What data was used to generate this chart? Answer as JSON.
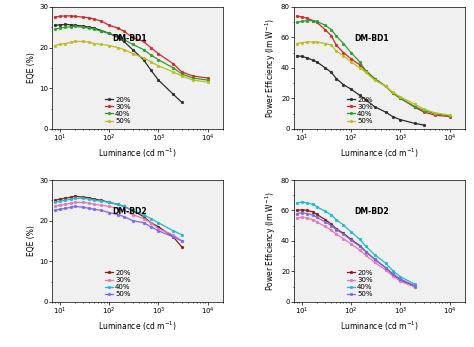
{
  "bd1_eqe": {
    "luminance": [
      8,
      10,
      13,
      17,
      20,
      30,
      40,
      50,
      70,
      100,
      150,
      200,
      300,
      500,
      700,
      1000,
      2000,
      3000,
      5000,
      10000,
      15000
    ],
    "20pct": [
      25.5,
      25.6,
      25.7,
      25.6,
      25.5,
      25.3,
      25.0,
      24.8,
      24.2,
      23.5,
      22.5,
      21.5,
      19.5,
      17.0,
      14.5,
      12.0,
      8.5,
      6.5,
      null,
      null,
      null
    ],
    "30pct": [
      27.5,
      27.7,
      27.8,
      27.8,
      27.7,
      27.5,
      27.3,
      27.0,
      26.5,
      25.5,
      24.8,
      24.0,
      22.5,
      21.5,
      20.0,
      18.5,
      16.0,
      14.0,
      13.0,
      12.5,
      null
    ],
    "40pct": [
      24.5,
      24.8,
      25.0,
      25.1,
      25.2,
      25.0,
      24.8,
      24.5,
      24.0,
      23.5,
      22.8,
      22.0,
      20.8,
      19.5,
      18.2,
      17.0,
      15.0,
      13.5,
      12.5,
      12.0,
      null
    ],
    "50pct": [
      20.5,
      20.8,
      21.0,
      21.3,
      21.5,
      21.5,
      21.3,
      21.0,
      20.8,
      20.5,
      20.0,
      19.5,
      18.5,
      17.5,
      16.5,
      15.5,
      14.0,
      13.0,
      12.0,
      11.5,
      null
    ]
  },
  "bd1_pe": {
    "luminance": [
      8,
      10,
      13,
      17,
      20,
      30,
      40,
      50,
      70,
      100,
      150,
      200,
      300,
      500,
      700,
      1000,
      2000,
      3000,
      5000,
      10000,
      15000
    ],
    "20pct": [
      48.0,
      47.5,
      46.5,
      45.0,
      44.0,
      40.0,
      37.0,
      33.0,
      29.0,
      26.0,
      22.0,
      19.0,
      14.5,
      11.0,
      8.0,
      6.0,
      3.5,
      2.5,
      null,
      null,
      null
    ],
    "30pct": [
      74.0,
      73.5,
      72.5,
      71.0,
      70.0,
      65.0,
      61.0,
      55.0,
      50.0,
      46.0,
      42.0,
      38.0,
      33.0,
      28.0,
      23.5,
      20.0,
      14.0,
      11.0,
      9.0,
      8.0,
      null
    ],
    "40pct": [
      70.0,
      70.5,
      71.0,
      71.0,
      70.5,
      68.0,
      65.0,
      61.0,
      56.0,
      50.0,
      44.0,
      38.0,
      33.0,
      28.0,
      23.5,
      20.0,
      14.5,
      12.0,
      10.0,
      8.5,
      null
    ],
    "50pct": [
      56.0,
      56.5,
      57.0,
      57.0,
      57.0,
      56.0,
      55.0,
      51.0,
      48.0,
      44.0,
      40.0,
      37.0,
      32.0,
      28.0,
      24.0,
      21.0,
      16.0,
      13.0,
      10.5,
      9.0,
      null
    ]
  },
  "bd2_eqe": {
    "luminance": [
      8,
      10,
      13,
      17,
      20,
      30,
      40,
      50,
      70,
      100,
      150,
      200,
      300,
      500,
      700,
      1000,
      2000,
      3000,
      5000,
      10000,
      15000
    ],
    "20pct": [
      25.0,
      25.3,
      25.5,
      25.8,
      26.0,
      25.8,
      25.6,
      25.3,
      25.0,
      24.5,
      24.0,
      23.5,
      22.5,
      21.0,
      19.5,
      18.5,
      16.0,
      13.5,
      null,
      null,
      null
    ],
    "30pct": [
      23.5,
      23.8,
      24.0,
      24.3,
      24.5,
      24.5,
      24.3,
      24.0,
      23.8,
      23.5,
      23.0,
      22.5,
      21.5,
      20.5,
      19.5,
      18.0,
      16.5,
      15.0,
      null,
      null,
      null
    ],
    "40pct": [
      24.5,
      24.8,
      25.0,
      25.3,
      25.5,
      25.5,
      25.3,
      25.0,
      24.8,
      24.5,
      24.0,
      23.5,
      22.5,
      21.5,
      20.5,
      19.5,
      17.5,
      16.5,
      null,
      null,
      null
    ],
    "50pct": [
      22.5,
      22.8,
      23.0,
      23.3,
      23.5,
      23.3,
      23.0,
      22.8,
      22.5,
      22.0,
      21.5,
      21.0,
      20.0,
      19.5,
      18.5,
      17.5,
      16.0,
      15.0,
      null,
      null,
      null
    ]
  },
  "bd2_pe": {
    "luminance": [
      8,
      10,
      13,
      17,
      20,
      30,
      40,
      50,
      70,
      100,
      150,
      200,
      300,
      500,
      700,
      1000,
      2000,
      3000,
      5000,
      10000,
      15000
    ],
    "20pct": [
      60.0,
      60.5,
      60.0,
      59.0,
      57.5,
      54.0,
      51.0,
      48.0,
      45.0,
      41.0,
      37.0,
      33.0,
      28.0,
      22.5,
      18.0,
      14.5,
      10.0,
      null,
      null,
      null,
      null
    ],
    "30pct": [
      55.0,
      55.5,
      55.0,
      54.0,
      52.5,
      49.5,
      47.0,
      44.5,
      41.5,
      38.0,
      34.0,
      30.5,
      26.0,
      21.0,
      17.0,
      13.5,
      9.5,
      null,
      null,
      null,
      null
    ],
    "40pct": [
      65.0,
      65.5,
      65.0,
      64.0,
      62.5,
      59.5,
      57.0,
      54.0,
      50.5,
      46.0,
      41.0,
      36.5,
      31.0,
      25.5,
      20.5,
      16.5,
      11.5,
      null,
      null,
      null,
      null
    ],
    "50pct": [
      58.0,
      58.5,
      58.0,
      57.0,
      55.5,
      52.5,
      50.0,
      47.5,
      44.5,
      40.5,
      36.5,
      33.0,
      28.0,
      22.5,
      18.5,
      15.0,
      10.5,
      null,
      null,
      null,
      null
    ]
  },
  "colors_bd1": {
    "20pct": "#2d2d2d",
    "30pct": "#d62728",
    "40pct": "#2ca02c",
    "50pct": "#bcbd22"
  },
  "colors_bd2": {
    "20pct": "#8b1a1a",
    "30pct": "#e377c2",
    "40pct": "#17becf",
    "50pct": "#7b68ee"
  },
  "marker": "o",
  "markersize": 2.0,
  "linewidth": 0.9,
  "bg_color": "#f0f0f0"
}
